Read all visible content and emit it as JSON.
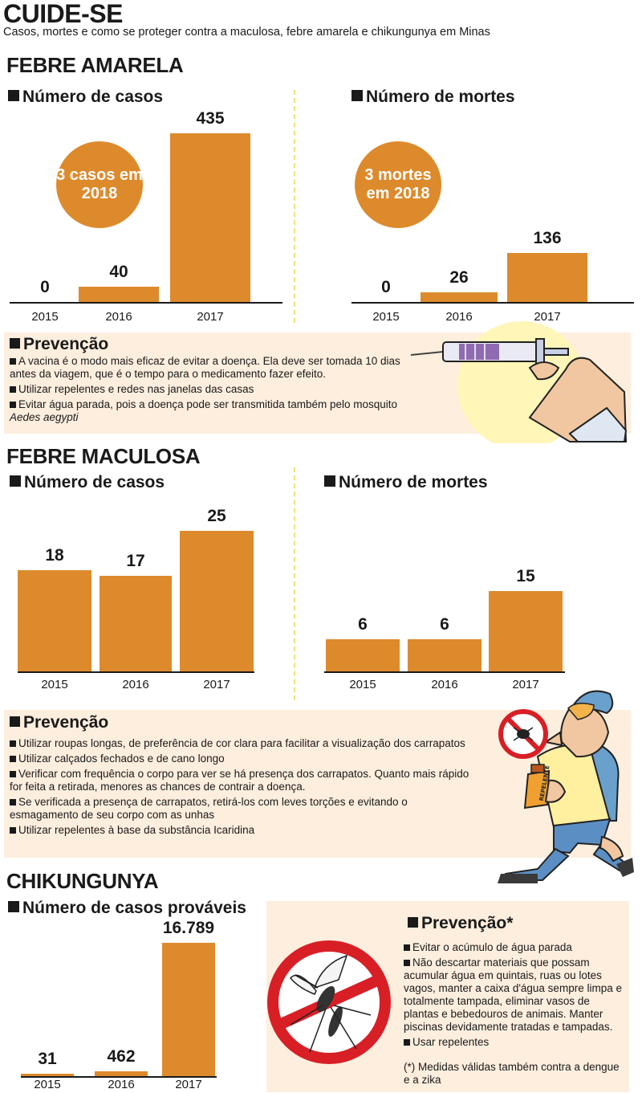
{
  "header": {
    "title": "CUIDE-SE",
    "subtitle": "Casos, mortes e como se proteger contra a maculosa, febre amarela e chikungunya em Minas"
  },
  "colors": {
    "bar": "#dd8a2c",
    "prevention_bg": "#fdeede",
    "badge": "#dd8a2c",
    "divider": "#f2dc7e"
  },
  "febre_amarela": {
    "title": "FEBRE AMARELA",
    "badge_cases": "3 casos em 2018",
    "badge_deaths": "3 mortes em 2018",
    "prevention": {
      "title": "Prevenção",
      "items": [
        "A vacina é o modo mais eficaz de evitar a doença. Ela deve ser tomada 10 dias antes da viagem, que é o tempo para o medicamento fazer efeito.",
        "Utilizar repelentes e redes nas janelas das casas",
        "Evitar água parada, pois a doença pode ser transmitida também pelo mosquito"
      ],
      "item3_species": "Aedes aegypti"
    }
  },
  "febre_maculosa": {
    "title": "FEBRE MACULOSA",
    "prevention": {
      "title": "Prevenção",
      "items": [
        "Utilizar roupas longas, de preferência de cor clara para facilitar a visualização dos carrapatos",
        "Utilizar calçados fechados e de cano longo",
        "Verificar com frequência o corpo para ver se há presença dos carrapatos. Quanto mais rápido for feita a retirada, menores as chances de contrair a doença.",
        "Se verificada a presença de carrapatos, retirá-los com leves torções e evitando o esmagamento de seu corpo com as unhas",
        "Utilizar repelentes à base da substância Icaridina"
      ],
      "bottle_label": "REPELENTE"
    }
  },
  "chikungunya": {
    "title": "CHIKUNGUNYA",
    "prevention": {
      "title": "Prevenção*",
      "items": [
        "Evitar o acúmulo de água parada",
        "Não descartar materiais que possam acumular água em quintais, ruas ou lotes vagos, manter a caixa d'água sempre limpa e totalmente tampada, eliminar vasos de plantas e bebedouros de animais. Manter piscinas devidamente tratadas e tampadas.",
        "Usar repelentes"
      ],
      "note": "(*) Medidas válidas também contra a dengue e a zika"
    }
  },
  "chart_data": [
    {
      "type": "bar",
      "title": "Número de casos",
      "categories": [
        "2015",
        "2016",
        "2017"
      ],
      "values": [
        0,
        40,
        435
      ],
      "value_labels": [
        "0",
        "40",
        "435"
      ],
      "tick_labels": [
        "2015",
        "2016",
        "2017"
      ]
    },
    {
      "type": "bar",
      "title": "Número de mortes",
      "categories": [
        "2015",
        "2016",
        "2017"
      ],
      "values": [
        0,
        26,
        136
      ],
      "value_labels": [
        "0",
        "26",
        "136"
      ],
      "tick_labels": [
        "2015",
        "2016",
        "2017"
      ]
    },
    {
      "type": "bar",
      "title": "Número de casos",
      "categories": [
        "2015",
        "2016",
        "2017"
      ],
      "values": [
        18,
        17,
        25
      ],
      "value_labels": [
        "18",
        "17",
        "25"
      ],
      "tick_labels": [
        "2015",
        "2016",
        "2017"
      ]
    },
    {
      "type": "bar",
      "title": "Número de mortes",
      "categories": [
        "2015",
        "2016",
        "2017"
      ],
      "values": [
        6,
        6,
        15
      ],
      "value_labels": [
        "6",
        "6",
        "15"
      ],
      "tick_labels": [
        "2015",
        "2016",
        "2017"
      ]
    },
    {
      "type": "bar",
      "title": "Número de casos prováveis",
      "categories": [
        "2015",
        "2016",
        "2017"
      ],
      "values": [
        31,
        462,
        16789
      ],
      "value_labels": [
        "31",
        "462",
        "16.789"
      ],
      "tick_labels": [
        "2015",
        "2016",
        "2017"
      ]
    }
  ]
}
